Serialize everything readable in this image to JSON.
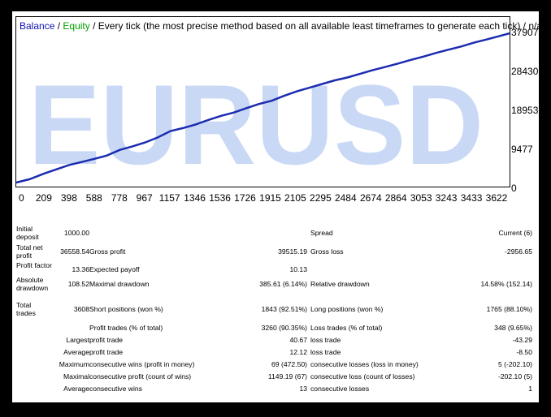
{
  "watermark": "EURUSD",
  "legend": {
    "balance": "Balance",
    "sep1": " / ",
    "equity": "Equity",
    "sep2": " / ",
    "description": "Every tick (the most precise method based on all available least timeframes to generate each tick) / n/a"
  },
  "colors": {
    "balance": "#1010b0",
    "equity": "#00a000",
    "line": "#1c2cb0",
    "watermark": "#c9d9f5"
  },
  "chart_data": {
    "type": "line",
    "x_ticks": [
      "0",
      "209",
      "398",
      "588",
      "778",
      "967",
      "1157",
      "1346",
      "1536",
      "1726",
      "1915",
      "2105",
      "2295",
      "2484",
      "2674",
      "2864",
      "3053",
      "3243",
      "3433",
      "3622"
    ],
    "y_ticks": [
      "37907",
      "28430",
      "18953",
      "9477",
      "0"
    ],
    "xlim": [
      0,
      3700
    ],
    "ylim": [
      0,
      37907
    ],
    "series": [
      {
        "name": "Balance",
        "x": [
          0,
          100,
          209,
          300,
          398,
          500,
          588,
          680,
          778,
          870,
          967,
          1060,
          1157,
          1250,
          1346,
          1440,
          1536,
          1630,
          1726,
          1820,
          1915,
          2010,
          2105,
          2200,
          2295,
          2390,
          2484,
          2580,
          2674,
          2770,
          2864,
          2960,
          3053,
          3150,
          3243,
          3340,
          3433,
          3530,
          3622,
          3700
        ],
        "y": [
          1000,
          1800,
          3200,
          4200,
          5300,
          6100,
          6800,
          7600,
          9000,
          9800,
          10800,
          12000,
          13600,
          14300,
          15200,
          16300,
          17300,
          18100,
          19200,
          20200,
          21000,
          22200,
          23300,
          24200,
          25100,
          26000,
          26700,
          27600,
          28500,
          29300,
          30100,
          31000,
          31800,
          32700,
          33500,
          34300,
          35200,
          36000,
          36800,
          37500
        ]
      }
    ]
  },
  "stats": [
    {
      "c1": "Initial deposit",
      "c2": "1000.00",
      "c3": "",
      "c4": "",
      "c5": "Spread",
      "c6": "Current (6)"
    },
    {
      "c1": "Total net profit",
      "c2": "36558.54",
      "c3": "Gross profit",
      "c4": "39515.19",
      "c5": "Gross loss",
      "c6": "-2956.65"
    },
    {
      "c1": "Profit factor",
      "c2": "13.36",
      "c3": "Expected payoff",
      "c4": "10.13",
      "c5": "",
      "c6": ""
    },
    {
      "c1": "Absolute drawdown",
      "c2": "108.52",
      "c3": "Maximal drawdown",
      "c4": "385.61 (6.14%)",
      "c5": "Relative drawdown",
      "c6": "14.58% (152.14)"
    },
    {
      "c1": "Total trades",
      "c2": "3608",
      "c3": "Short positions (won %)",
      "c4": "1843 (92.51%)",
      "c5": "Long positions (won %)",
      "c6": "1765 (88.10%)"
    },
    {
      "c1": "",
      "c2": "",
      "c3": "Profit trades (% of total)",
      "c4": "3260 (90.35%)",
      "c5": "Loss trades (% of total)",
      "c6": "348 (9.65%)"
    },
    {
      "c1": "",
      "c2": "Largest",
      "c3": "profit trade",
      "c4": "40.67",
      "c5": "loss trade",
      "c6": "-43.29"
    },
    {
      "c1": "",
      "c2": "Average",
      "c3": "profit trade",
      "c4": "12.12",
      "c5": "loss trade",
      "c6": "-8.50"
    },
    {
      "c1": "",
      "c2": "Maximum",
      "c3": "consecutive wins (profit in money)",
      "c4": "69 (472.50)",
      "c5": "consecutive losses (loss in money)",
      "c6": "5 (-202.10)"
    },
    {
      "c1": "",
      "c2": "Maximal",
      "c3": "consecutive profit (count of wins)",
      "c4": "1149.19 (67)",
      "c5": "consecutive loss (count of losses)",
      "c6": "-202.10 (5)"
    },
    {
      "c1": "",
      "c2": "Average",
      "c3": "consecutive wins",
      "c4": "13",
      "c5": "consecutive losses",
      "c6": "1"
    }
  ]
}
